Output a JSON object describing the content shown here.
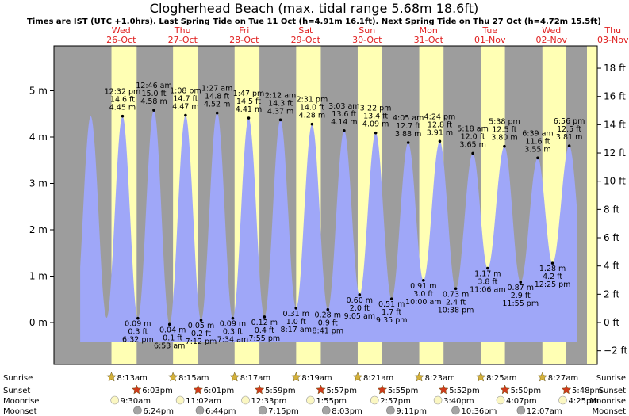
{
  "title": "Clogherhead Beach (max. tidal range 5.68m 18.6ft)",
  "subtitle": "Times are IST (UTC +1.0hrs). Last Spring Tide on Tue 11 Oct (h=4.91m 16.1ft). Next Spring Tide on Thu 27 Oct (h=4.72m 15.5ft)",
  "colors": {
    "water": "#9fa7f8",
    "day": "#ffffb4",
    "night": "#9d9d9d",
    "sun": "#d4b13a",
    "sunset": "#d03a1a",
    "moon": "#fbf7c2",
    "moonset": "#a4a4a4"
  },
  "chart_data": {
    "type": "area",
    "x_unit": "hours after 00:00 Wed 26 Oct",
    "y_unit": "m",
    "ylim_m": [
      -0.45,
      5.85
    ],
    "y_right_ticks_ft": [
      "18 ft",
      "16 ft",
      "14 ft",
      "12 ft",
      "10 ft",
      "8 ft",
      "6 ft",
      "4 ft",
      "2 ft",
      "0 ft",
      "−2 ft"
    ],
    "y_left_ticks_m": [
      "5 m",
      "4 m",
      "3 m",
      "2 m",
      "1 m",
      "0 m"
    ],
    "days": [
      {
        "name": "Wed",
        "date": "26-Oct"
      },
      {
        "name": "Thu",
        "date": "27-Oct"
      },
      {
        "name": "Fri",
        "date": "28-Oct"
      },
      {
        "name": "Sat",
        "date": "29-Oct"
      },
      {
        "name": "Sun",
        "date": "30-Oct"
      },
      {
        "name": "Mon",
        "date": "31-Oct"
      },
      {
        "name": "Tue",
        "date": "01-Nov"
      },
      {
        "name": "Wed",
        "date": "02-Nov"
      },
      {
        "name": "Thu",
        "date": "03-Nov"
      }
    ],
    "tides": [
      {
        "t": 12.53,
        "h": 4.45,
        "time": "12:32 pm",
        "ft": "14.6 ft",
        "m": "4.45 m"
      },
      {
        "t": 18.53,
        "h": 0.09,
        "time": "6:32 pm",
        "ft": "0.3 ft",
        "m": "0.09 m"
      },
      {
        "t": 24.77,
        "h": 4.58,
        "time": "12:46 am",
        "ft": "15.0 ft",
        "m": "4.58 m"
      },
      {
        "t": 30.88,
        "h": -0.04,
        "time": "6:53 am",
        "ft": "−0.1 ft",
        "m": "−0.04 m"
      },
      {
        "t": 37.13,
        "h": 4.47,
        "time": "1:08 pm",
        "ft": "14.7 ft",
        "m": "4.47 m"
      },
      {
        "t": 43.2,
        "h": 0.05,
        "time": "7:12 pm",
        "ft": "0.2 ft",
        "m": "0.05 m"
      },
      {
        "t": 49.45,
        "h": 4.52,
        "time": "1:27 am",
        "ft": "14.8 ft",
        "m": "4.52 m"
      },
      {
        "t": 55.57,
        "h": 0.09,
        "time": "7:34 am",
        "ft": "0.3 ft",
        "m": "0.09 m"
      },
      {
        "t": 61.78,
        "h": 4.41,
        "time": "1:47 pm",
        "ft": "14.5 ft",
        "m": "4.41 m"
      },
      {
        "t": 67.92,
        "h": 0.12,
        "time": "7:55 pm",
        "ft": "0.4 ft",
        "m": "0.12 m"
      },
      {
        "t": 74.2,
        "h": 4.37,
        "time": "2:12 am",
        "ft": "14.3 ft",
        "m": "4.37 m"
      },
      {
        "t": 80.28,
        "h": 0.31,
        "time": "8:17 am",
        "ft": "1.0 ft",
        "m": "0.31 m"
      },
      {
        "t": 86.52,
        "h": 4.28,
        "time": "2:31 pm",
        "ft": "14.0 ft",
        "m": "4.28 m"
      },
      {
        "t": 92.68,
        "h": 0.28,
        "time": "8:41 pm",
        "ft": "0.9 ft",
        "m": "0.28 m"
      },
      {
        "t": 99.05,
        "h": 4.14,
        "time": "3:03 am",
        "ft": "13.6 ft",
        "m": "4.14 m"
      },
      {
        "t": 105.08,
        "h": 0.6,
        "time": "9:05 am",
        "ft": "2.0 ft",
        "m": "0.60 m"
      },
      {
        "t": 111.37,
        "h": 4.09,
        "time": "3:22 pm",
        "ft": "13.4 ft",
        "m": "4.09 m"
      },
      {
        "t": 117.58,
        "h": 0.51,
        "time": "9:35 pm",
        "ft": "1.7 ft",
        "m": "0.51 m"
      },
      {
        "t": 124.08,
        "h": 3.88,
        "time": "4:05 am",
        "ft": "12.7 ft",
        "m": "3.88 m"
      },
      {
        "t": 130.0,
        "h": 0.91,
        "time": "10:00 am",
        "ft": "3.0 ft",
        "m": "0.91 m"
      },
      {
        "t": 136.4,
        "h": 3.91,
        "time": "4:24 pm",
        "ft": "12.8 ft",
        "m": "3.91 m"
      },
      {
        "t": 142.63,
        "h": 0.73,
        "time": "10:38 pm",
        "ft": "2.4 ft",
        "m": "0.73 m"
      },
      {
        "t": 149.3,
        "h": 3.65,
        "time": "5:18 am",
        "ft": "12.0 ft",
        "m": "3.65 m"
      },
      {
        "t": 155.1,
        "h": 1.17,
        "time": "11:06 am",
        "ft": "3.8 ft",
        "m": "1.17 m"
      },
      {
        "t": 161.63,
        "h": 3.8,
        "time": "5:38 pm",
        "ft": "12.5 ft",
        "m": "3.80 m"
      },
      {
        "t": 167.92,
        "h": 0.87,
        "time": "11:55 pm",
        "ft": "2.9 ft",
        "m": "0.87 m"
      },
      {
        "t": 174.65,
        "h": 3.55,
        "time": "6:39 am",
        "ft": "11.6 ft",
        "m": "3.55 m"
      },
      {
        "t": 180.42,
        "h": 1.28,
        "time": "12:25 pm",
        "ft": "4.2 ft",
        "m": "1.28 m"
      },
      {
        "t": 186.93,
        "h": 3.81,
        "time": "6:56 pm",
        "ft": "12.5 ft",
        "m": "3.81 m"
      }
    ],
    "sunrise": [
      "8:13am",
      "8:15am",
      "8:17am",
      "8:19am",
      "8:21am",
      "8:23am",
      "8:25am",
      "8:27am"
    ],
    "sunset": [
      "6:03pm",
      "6:01pm",
      "5:59pm",
      "5:57pm",
      "5:55pm",
      "5:52pm",
      "5:50pm",
      "5:48pm"
    ],
    "moonrise": [
      "9:30am",
      "11:02am",
      "12:33pm",
      "1:55pm",
      "2:57pm",
      "3:40pm",
      "4:07pm",
      "4:25pm"
    ],
    "moonset": [
      "6:24pm",
      "6:44pm",
      "7:15pm",
      "8:03pm",
      "9:11pm",
      "10:36pm",
      "12:07am"
    ]
  },
  "astro_labels": {
    "sunrise": "Sunrise",
    "sunset": "Sunset",
    "moonrise": "Moonrise",
    "moonset": "Moonset"
  }
}
